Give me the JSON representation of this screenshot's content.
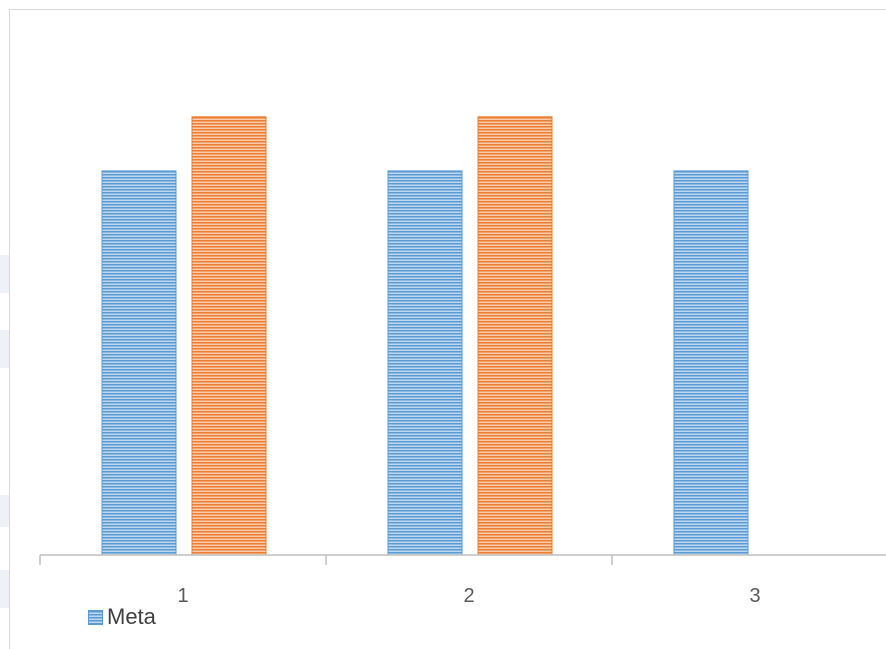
{
  "chart_data": {
    "type": "bar",
    "categories": [
      "1",
      "2",
      "3"
    ],
    "series": [
      {
        "name": "Meta",
        "values": [
          7.1,
          7.1,
          7.1
        ],
        "color": "#5b9bd5",
        "stripe": "#bdd7ee"
      },
      {
        "name": "",
        "values": [
          8.1,
          8.1,
          0
        ],
        "color": "#ed7d31",
        "stripe": "#f8cbad"
      }
    ],
    "title": "",
    "xlabel": "",
    "ylabel": "",
    "ylim": [
      0,
      10
    ],
    "grid": false,
    "legend": "bottom-left"
  }
}
